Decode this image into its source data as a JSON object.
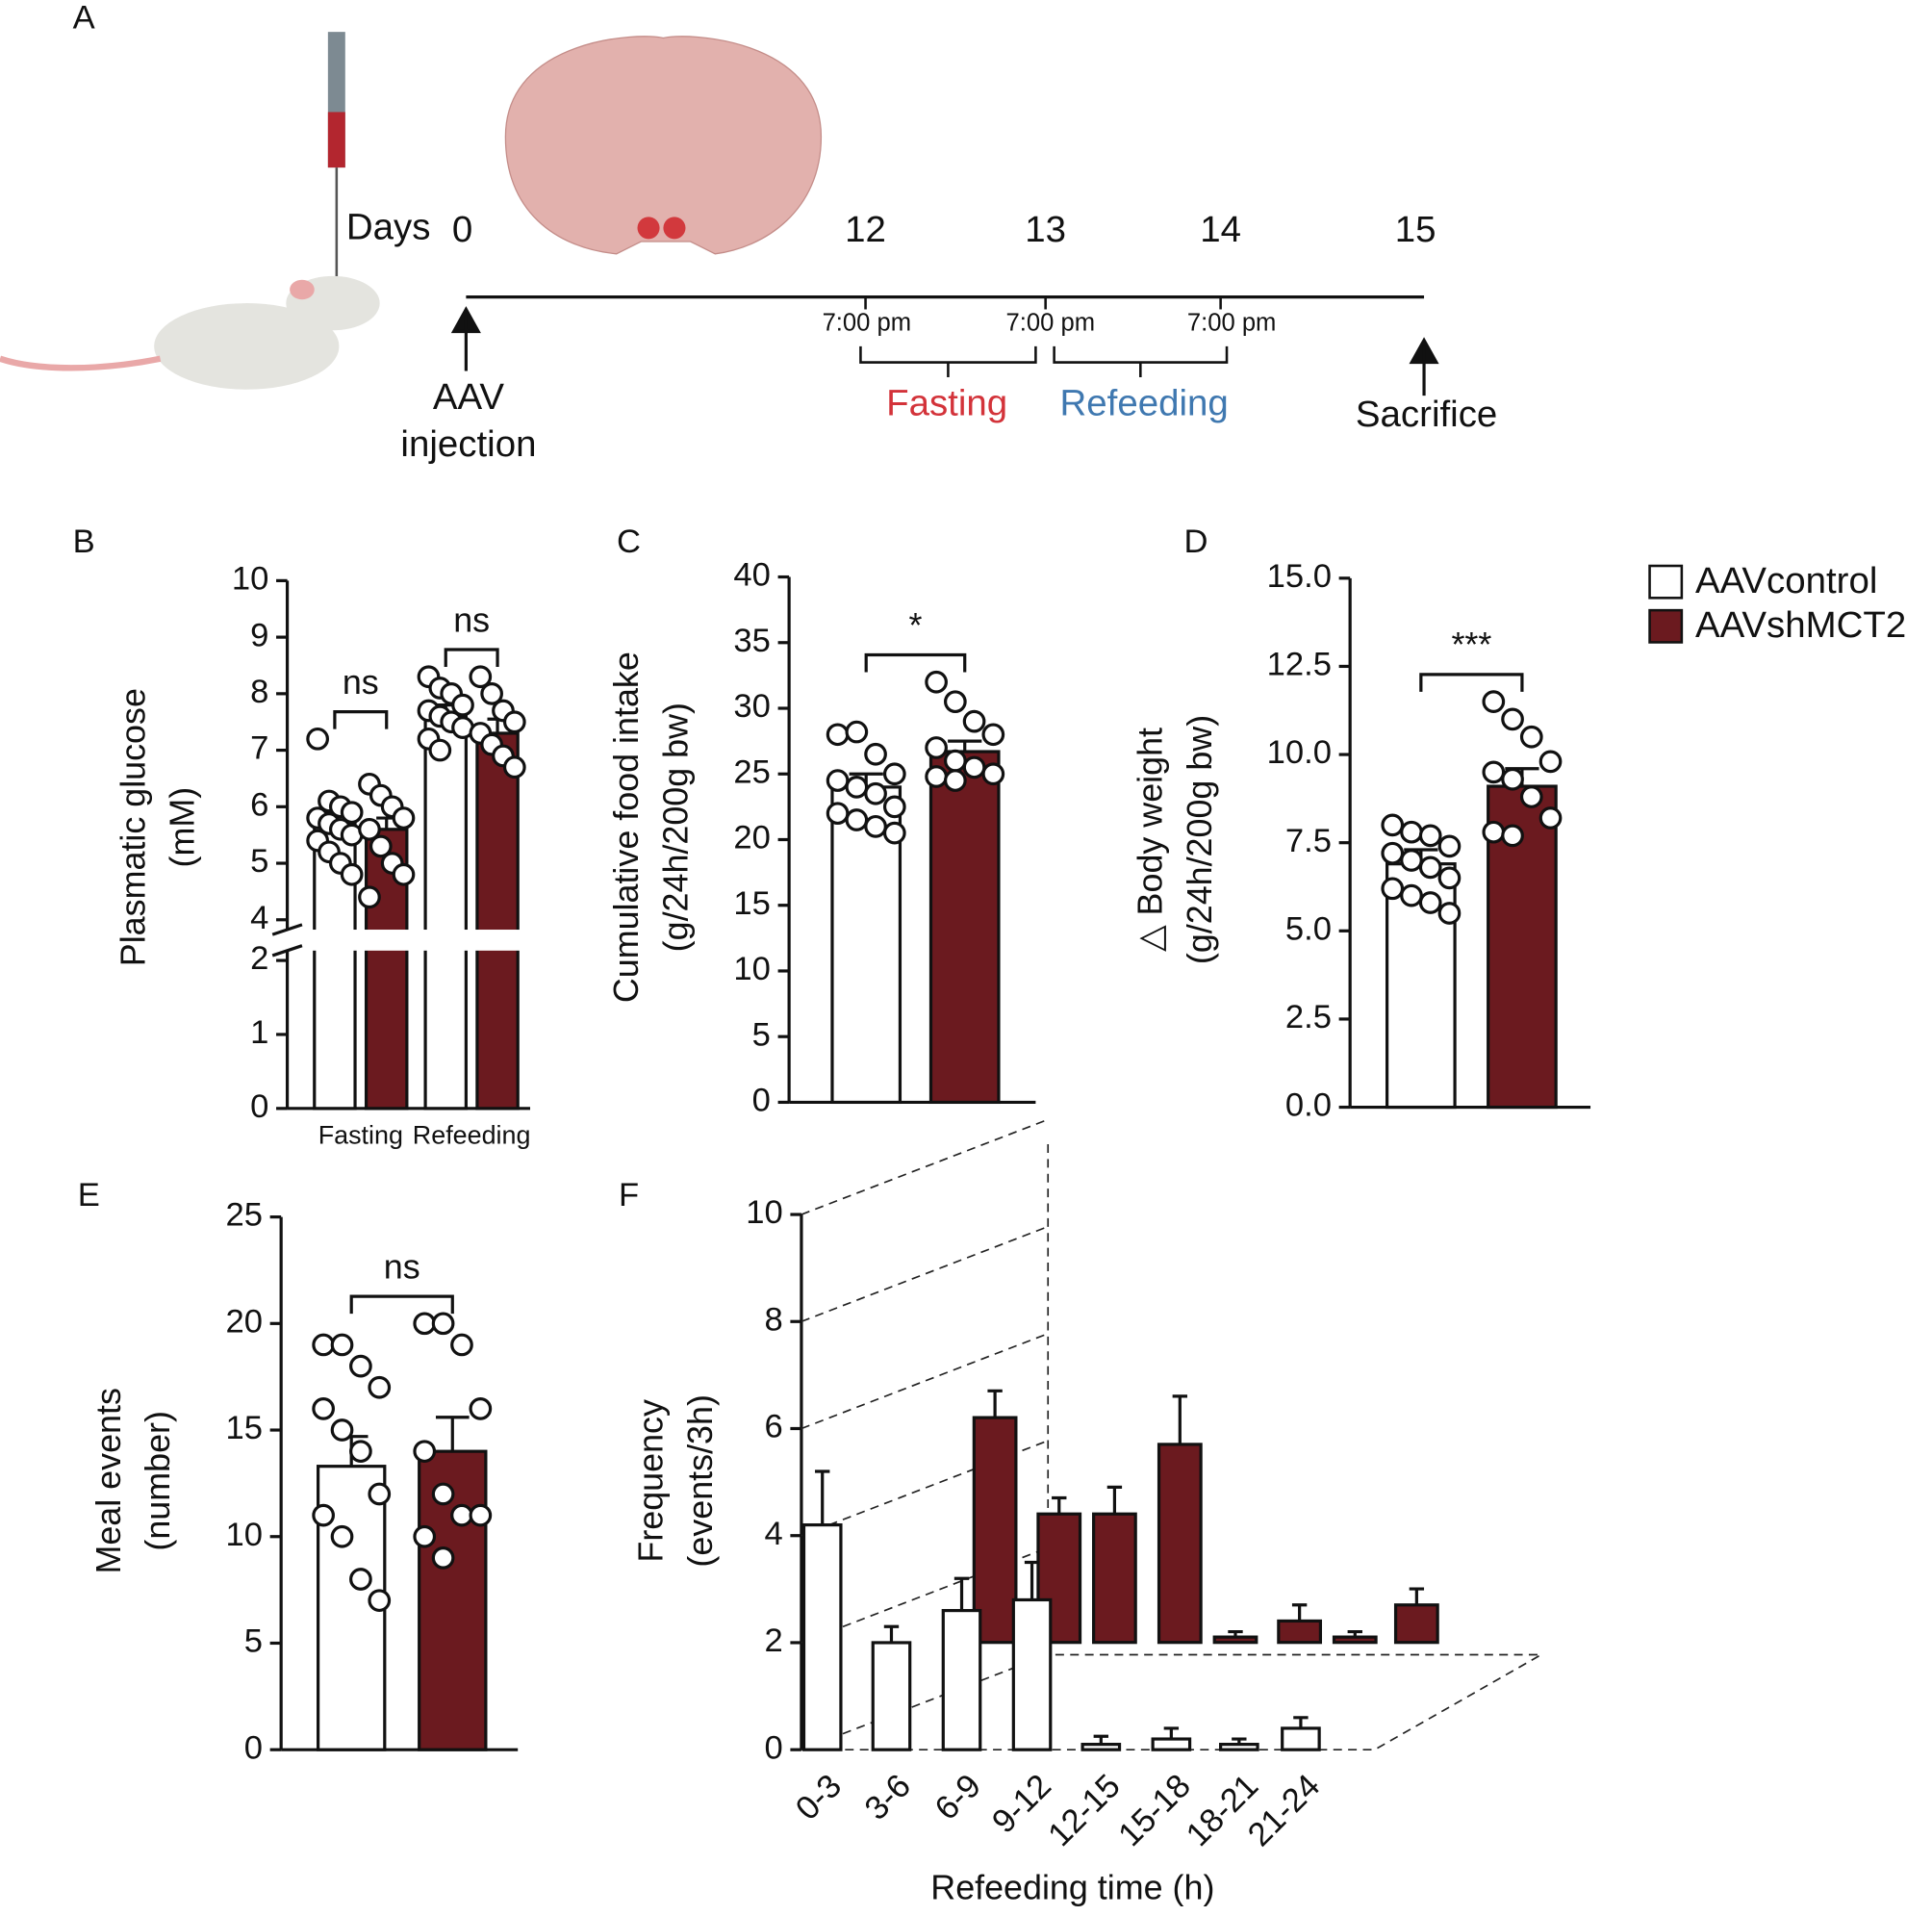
{
  "timeline": {
    "panel": "A",
    "unit": "Days",
    "days": [
      0,
      12,
      13,
      14,
      15
    ],
    "times": [
      "7:00 pm",
      "7:00 pm",
      "7:00 pm"
    ],
    "phases": [
      "Fasting",
      "Refeeding"
    ],
    "start": [
      "AAV",
      "injection"
    ],
    "end": "Sacrifice"
  },
  "chart_data": [
    {
      "panel": "B",
      "type": "bar",
      "ylabel": [
        "Plasmatic glucose",
        "(mM)"
      ],
      "categories": [
        "Fasting",
        "Refeeding"
      ],
      "ylim": [
        0,
        10
      ],
      "axis_break": [
        2,
        4
      ],
      "yticks": [
        0,
        1,
        2,
        4,
        5,
        6,
        7,
        8,
        9,
        10
      ],
      "annotations": [
        "ns",
        "ns"
      ],
      "series": [
        {
          "name": "AAVcontrol",
          "color": "#ffffff",
          "values": [
            5.7,
            7.6
          ],
          "errors": [
            0.2,
            0.2
          ],
          "points": [
            [
              7.2,
              6.1,
              6.0,
              5.9,
              5.8,
              5.7,
              5.6,
              5.5,
              5.4,
              5.2,
              5.0,
              4.8
            ],
            [
              8.3,
              8.1,
              8.0,
              7.8,
              7.7,
              7.6,
              7.5,
              7.4,
              7.2,
              7.0
            ]
          ]
        },
        {
          "name": "AAVshMCT2",
          "color": "#6b1a1f",
          "values": [
            5.6,
            7.3
          ],
          "errors": [
            0.2,
            0.25
          ],
          "points": [
            [
              6.4,
              6.2,
              6.0,
              5.8,
              5.6,
              5.3,
              5.0,
              4.8,
              4.4
            ],
            [
              8.3,
              8.0,
              7.7,
              7.5,
              7.3,
              7.1,
              6.9,
              6.7
            ]
          ]
        }
      ]
    },
    {
      "panel": "C",
      "type": "bar",
      "ylabel": [
        "Cumulative food intake",
        "(g/24h/200g bw)"
      ],
      "categories": [
        null
      ],
      "ylim": [
        0,
        40
      ],
      "yticks": [
        0,
        5,
        10,
        15,
        20,
        25,
        30,
        35,
        40
      ],
      "annotations": [
        "*"
      ],
      "series": [
        {
          "name": "AAVcontrol",
          "color": "#ffffff",
          "values": [
            24
          ],
          "errors": [
            1
          ],
          "points": [
            [
              28,
              28.2,
              26.5,
              25,
              24.5,
              24,
              23.5,
              22.5,
              22,
              21.5,
              21,
              20.5
            ]
          ]
        },
        {
          "name": "AAVshMCT2",
          "color": "#6b1a1f",
          "values": [
            26.7
          ],
          "errors": [
            0.8
          ],
          "points": [
            [
              32,
              30.5,
              29,
              28,
              27,
              26,
              25.5,
              25,
              24.8,
              24.5
            ]
          ]
        }
      ]
    },
    {
      "panel": "D",
      "type": "bar",
      "ylabel": [
        "△ Body weight",
        "(g/24h/200g bw)"
      ],
      "categories": [
        null
      ],
      "ylim": [
        0,
        15
      ],
      "yticks": [
        {
          "value": 0,
          "label": "0.0"
        },
        2.5,
        {
          "value": 5,
          "label": "5.0"
        },
        7.5,
        {
          "value": 10,
          "label": "10.0"
        },
        12.5,
        {
          "value": 15,
          "label": "15.0"
        }
      ],
      "annotations": [
        "***"
      ],
      "series": [
        {
          "name": "AAVcontrol",
          "color": "#ffffff",
          "values": [
            6.9
          ],
          "errors": [
            0.4
          ],
          "points": [
            [
              8,
              7.8,
              7.7,
              7.4,
              7.2,
              7,
              6.8,
              6.5,
              6.2,
              6,
              5.8,
              5.5
            ]
          ]
        },
        {
          "name": "AAVshMCT2",
          "color": "#6b1a1f",
          "values": [
            9.1
          ],
          "errors": [
            0.5
          ],
          "points": [
            [
              11.5,
              11,
              10.5,
              9.8,
              9.5,
              9.3,
              8.8,
              8.2,
              7.8,
              7.7
            ]
          ]
        }
      ]
    },
    {
      "panel": "E",
      "type": "bar",
      "ylabel": [
        "Meal events",
        "(number)"
      ],
      "categories": [
        null
      ],
      "ylim": [
        0,
        25
      ],
      "yticks": [
        0,
        5,
        10,
        15,
        20,
        25
      ],
      "annotations": [
        "ns"
      ],
      "series": [
        {
          "name": "AAVcontrol",
          "color": "#ffffff",
          "values": [
            13.3
          ],
          "errors": [
            1.4
          ],
          "points": [
            [
              19,
              19,
              18,
              17,
              16,
              15,
              14,
              12,
              11,
              10,
              8,
              7
            ]
          ]
        },
        {
          "name": "AAVshMCT2",
          "color": "#6b1a1f",
          "values": [
            14.0
          ],
          "errors": [
            1.6
          ],
          "points": [
            [
              20,
              20,
              19,
              16,
              14,
              12,
              11,
              11,
              10,
              9
            ]
          ]
        }
      ]
    },
    {
      "panel": "F",
      "type": "bar3d",
      "ylabel": [
        "Frequency",
        "(events/3h)"
      ],
      "xlabel": "Refeeding time (h)",
      "categories": [
        "0-3",
        "3-6",
        "6-9",
        "9-12",
        "12-15",
        "15-18",
        "18-21",
        "21-24"
      ],
      "ylim": [
        0,
        10
      ],
      "yticks": [
        0,
        2,
        4,
        6,
        8,
        10
      ],
      "series": [
        {
          "name": "AAVcontrol",
          "color": "#ffffff",
          "values": [
            4.2,
            2.0,
            2.6,
            2.8,
            0.1,
            0.2,
            0.1,
            0.4
          ],
          "errors": [
            1.0,
            0.3,
            0.6,
            0.7,
            0.15,
            0.2,
            0.1,
            0.2
          ]
        },
        {
          "name": "AAVshMCT2",
          "color": "#6b1a1f",
          "values": [
            4.2,
            2.4,
            2.4,
            3.7,
            0.1,
            0.4,
            0.1,
            0.7
          ],
          "errors": [
            0.5,
            0.3,
            0.5,
            0.9,
            0.1,
            0.3,
            0.1,
            0.3
          ]
        }
      ]
    }
  ]
}
